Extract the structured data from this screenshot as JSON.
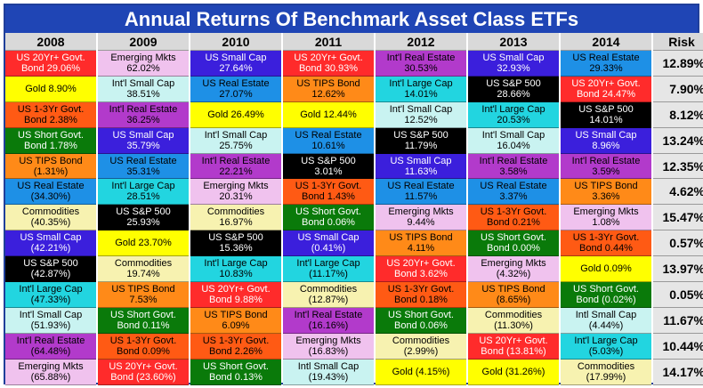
{
  "title": "Annual Returns Of Benchmark Asset Class ETFs",
  "headers": [
    "2008",
    "2009",
    "2010",
    "2011",
    "2012",
    "2013",
    "2014",
    "Risk"
  ],
  "assets": {
    "lt": {
      "color": "#ff2b2b",
      "text": "#ffffff"
    },
    "gold": {
      "color": "#ffff00",
      "text": "#000000"
    },
    "st13": {
      "color": "#ff5a14",
      "text": "#000000"
    },
    "short": {
      "color": "#0a7a0a",
      "text": "#ffffff"
    },
    "tips": {
      "color": "#ff8a18",
      "text": "#000000"
    },
    "re": {
      "color": "#1e90e6",
      "text": "#000000"
    },
    "comm": {
      "color": "#f7f2b0",
      "text": "#000000"
    },
    "sc": {
      "color": "#3b1fdc",
      "text": "#ffffff"
    },
    "sp": {
      "color": "#000000",
      "text": "#ffffff"
    },
    "ilc": {
      "color": "#22d5e0",
      "text": "#000000"
    },
    "isc": {
      "color": "#c9f3f1",
      "text": "#000000"
    },
    "ire": {
      "color": "#b23acb",
      "text": "#000000"
    },
    "em": {
      "color": "#f0c2ee",
      "text": "#000000"
    }
  },
  "columns": [
    [
      {
        "a": "lt",
        "l": [
          "US 20Yr+ Govt.",
          "Bond 29.06%"
        ]
      },
      {
        "a": "gold",
        "l": [
          "",
          "Gold 8.90%"
        ]
      },
      {
        "a": "st13",
        "l": [
          "US 1-3Yr Govt.",
          "Bond 2.38%"
        ]
      },
      {
        "a": "short",
        "l": [
          "US Short Govt.",
          "Bond 1.78%"
        ]
      },
      {
        "a": "tips",
        "l": [
          "US TIPS Bond",
          "(1.31%)"
        ]
      },
      {
        "a": "re",
        "l": [
          "US Real Estate",
          "(34.30%)"
        ]
      },
      {
        "a": "comm",
        "l": [
          "Commodities",
          "(40.35%)"
        ]
      },
      {
        "a": "sc",
        "l": [
          "US Small Cap",
          "(42.21%)"
        ]
      },
      {
        "a": "sp",
        "l": [
          "US S&P 500",
          "(42.87%)"
        ]
      },
      {
        "a": "ilc",
        "l": [
          "Int'l Large Cap",
          "(47.33%)"
        ]
      },
      {
        "a": "isc",
        "l": [
          "Int'l Small Cap",
          "(51.93%)"
        ]
      },
      {
        "a": "ire",
        "l": [
          "Int'l Real Estate",
          "(64.48%)"
        ]
      },
      {
        "a": "em",
        "l": [
          "Emerging Mkts",
          "(65.88%)"
        ]
      }
    ],
    [
      {
        "a": "em",
        "l": [
          "Emerging Mkts",
          "62.02%"
        ]
      },
      {
        "a": "isc",
        "l": [
          "Int'l Small Cap",
          "38.51%"
        ]
      },
      {
        "a": "ire",
        "l": [
          "Int'l Real Estate",
          "36.25%"
        ]
      },
      {
        "a": "sc",
        "l": [
          "US Small Cap",
          "35.79%"
        ]
      },
      {
        "a": "re",
        "l": [
          "US Real Estate",
          "35.31%"
        ]
      },
      {
        "a": "ilc",
        "l": [
          "Int'l Large Cap",
          "28.51%"
        ]
      },
      {
        "a": "sp",
        "l": [
          "US S&P 500",
          "25.93%"
        ]
      },
      {
        "a": "gold",
        "l": [
          "",
          "Gold 23.70%"
        ]
      },
      {
        "a": "comm",
        "l": [
          "Commodities",
          "19.74%"
        ]
      },
      {
        "a": "tips",
        "l": [
          "US TIPS Bond",
          "7.53%"
        ]
      },
      {
        "a": "short",
        "l": [
          "US Short Govt.",
          "Bond 0.11%"
        ]
      },
      {
        "a": "st13",
        "l": [
          "US 1-3Yr Govt.",
          "Bond 0.09%"
        ]
      },
      {
        "a": "lt",
        "l": [
          "US 20Yr+ Govt.",
          "Bond (23.60%)"
        ]
      }
    ],
    [
      {
        "a": "sc",
        "l": [
          "US Small Cap",
          "27.64%"
        ]
      },
      {
        "a": "re",
        "l": [
          "US Real Estate",
          "27.07%"
        ]
      },
      {
        "a": "gold",
        "l": [
          "",
          "Gold 26.49%"
        ]
      },
      {
        "a": "isc",
        "l": [
          "Int'l Small Cap",
          "25.75%"
        ]
      },
      {
        "a": "ire",
        "l": [
          "Int'l Real Estate",
          "22.21%"
        ]
      },
      {
        "a": "em",
        "l": [
          "Emerging Mkts",
          "20.31%"
        ]
      },
      {
        "a": "comm",
        "l": [
          "Commodities",
          "16.97%"
        ]
      },
      {
        "a": "sp",
        "l": [
          "US S&P 500",
          "15.36%"
        ]
      },
      {
        "a": "ilc",
        "l": [
          "Int'l Large Cap",
          "10.83%"
        ]
      },
      {
        "a": "lt",
        "l": [
          "US 20Yr+ Govt.",
          "Bond 9.88%"
        ]
      },
      {
        "a": "tips",
        "l": [
          "US TIPS Bond",
          "6.09%"
        ]
      },
      {
        "a": "st13",
        "l": [
          "US 1-3Yr Govt.",
          "Bond 2.26%"
        ]
      },
      {
        "a": "short",
        "l": [
          "US Short Govt.",
          "Bond 0.13%"
        ]
      }
    ],
    [
      {
        "a": "lt",
        "l": [
          "US 20Yr+ Govt.",
          "Bond 30.93%"
        ]
      },
      {
        "a": "tips",
        "l": [
          "US TIPS Bond",
          "12.62%"
        ]
      },
      {
        "a": "gold",
        "l": [
          "",
          "Gold 12.44%"
        ]
      },
      {
        "a": "re",
        "l": [
          "US Real Estate",
          "10.61%"
        ]
      },
      {
        "a": "sp",
        "l": [
          "US S&P 500",
          "3.01%"
        ]
      },
      {
        "a": "st13",
        "l": [
          "US 1-3Yr Govt.",
          "Bond 1.43%"
        ]
      },
      {
        "a": "short",
        "l": [
          "US Short Govt.",
          "Bond 0.06%"
        ]
      },
      {
        "a": "sc",
        "l": [
          "US Small Cap",
          "(0.41%)"
        ]
      },
      {
        "a": "ilc",
        "l": [
          "Int'l Large Cap",
          "(11.17%)"
        ]
      },
      {
        "a": "comm",
        "l": [
          "Commodities",
          "(12.87%)"
        ]
      },
      {
        "a": "ire",
        "l": [
          "Int'l Real Estate",
          "(16.16%)"
        ]
      },
      {
        "a": "em",
        "l": [
          "Emerging Mkts",
          "(16.83%)"
        ]
      },
      {
        "a": "isc",
        "l": [
          "Intl Small Cap",
          "(19.43%)"
        ]
      }
    ],
    [
      {
        "a": "ire",
        "l": [
          "Int'l Real Estate",
          "30.53%"
        ]
      },
      {
        "a": "ilc",
        "l": [
          "Int'l Large Cap",
          "14.01%"
        ]
      },
      {
        "a": "isc",
        "l": [
          "Int'l Small Cap",
          "12.52%"
        ]
      },
      {
        "a": "sp",
        "l": [
          "US S&P 500",
          "11.79%"
        ]
      },
      {
        "a": "sc",
        "l": [
          "US Small Cap",
          "11.63%"
        ]
      },
      {
        "a": "re",
        "l": [
          "US Real Estate",
          "11.57%"
        ]
      },
      {
        "a": "em",
        "l": [
          "Emerging Mkts",
          "9.44%"
        ]
      },
      {
        "a": "tips",
        "l": [
          "US TIPS Bond",
          "4.11%"
        ]
      },
      {
        "a": "lt",
        "l": [
          "US 20Yr+ Govt.",
          "Bond 3.62%"
        ]
      },
      {
        "a": "st13",
        "l": [
          "US 1-3Yr Govt.",
          "Bond 0.18%"
        ]
      },
      {
        "a": "short",
        "l": [
          "US Short Govt.",
          "Bond 0.06%"
        ]
      },
      {
        "a": "comm",
        "l": [
          "Commodities",
          "(2.99%)"
        ]
      },
      {
        "a": "gold",
        "l": [
          "",
          "Gold (4.15%)"
        ]
      }
    ],
    [
      {
        "a": "sc",
        "l": [
          "US Small Cap",
          "32.93%"
        ]
      },
      {
        "a": "sp",
        "l": [
          "US S&P 500",
          "28.66%"
        ]
      },
      {
        "a": "ilc",
        "l": [
          "Int'l Large Cap",
          "20.53%"
        ]
      },
      {
        "a": "isc",
        "l": [
          "Int'l Small Cap",
          "16.04%"
        ]
      },
      {
        "a": "ire",
        "l": [
          "Int'l Real Estate",
          "3.58%"
        ]
      },
      {
        "a": "re",
        "l": [
          "US Real Estate",
          "3.37%"
        ]
      },
      {
        "a": "st13",
        "l": [
          "US 1-3Yr Govt.",
          "Bond 0.21%"
        ]
      },
      {
        "a": "short",
        "l": [
          "US Short Govt.",
          "Bond 0.00%"
        ]
      },
      {
        "a": "em",
        "l": [
          "Emerging Mkts",
          "(4.32%)"
        ]
      },
      {
        "a": "tips",
        "l": [
          "US TIPS Bond",
          "(8.65%)"
        ]
      },
      {
        "a": "comm",
        "l": [
          "Commodities",
          "(11.30%)"
        ]
      },
      {
        "a": "lt",
        "l": [
          "US 20Yr+ Govt.",
          "Bond (13.81%)"
        ]
      },
      {
        "a": "gold",
        "l": [
          "",
          "Gold (31.26%)"
        ]
      }
    ],
    [
      {
        "a": "re",
        "l": [
          "US Real Estate",
          "29.33%"
        ]
      },
      {
        "a": "lt",
        "l": [
          "US 20Yr+ Govt.",
          "Bond 24.47%"
        ]
      },
      {
        "a": "sp",
        "l": [
          "US S&P 500",
          "14.01%"
        ]
      },
      {
        "a": "sc",
        "l": [
          "US Small Cap",
          "8.96%"
        ]
      },
      {
        "a": "ire",
        "l": [
          "Int'l Real Estate",
          "3.59%"
        ]
      },
      {
        "a": "tips",
        "l": [
          "US TIPS Bond",
          "3.36%"
        ]
      },
      {
        "a": "em",
        "l": [
          "Emerging Mkts",
          "1.08%"
        ]
      },
      {
        "a": "st13",
        "l": [
          "US 1-3Yr Govt.",
          "Bond 0.44%"
        ]
      },
      {
        "a": "gold",
        "l": [
          "",
          "Gold 0.09%"
        ]
      },
      {
        "a": "short",
        "l": [
          "US Short Govt.",
          "Bond (0.02%)"
        ]
      },
      {
        "a": "isc",
        "l": [
          "Intl Small Cap",
          "(4.44%)"
        ]
      },
      {
        "a": "ilc",
        "l": [
          "Int'l Large Cap",
          "(5.03%)"
        ]
      },
      {
        "a": "comm",
        "l": [
          "Commodities",
          "(17.99%)"
        ]
      }
    ]
  ],
  "risk": [
    "12.89%",
    "7.90%",
    "8.12%",
    "13.24%",
    "12.35%",
    "4.62%",
    "15.47%",
    "0.57%",
    "13.97%",
    "0.05%",
    "11.67%",
    "10.44%",
    "14.17%"
  ]
}
